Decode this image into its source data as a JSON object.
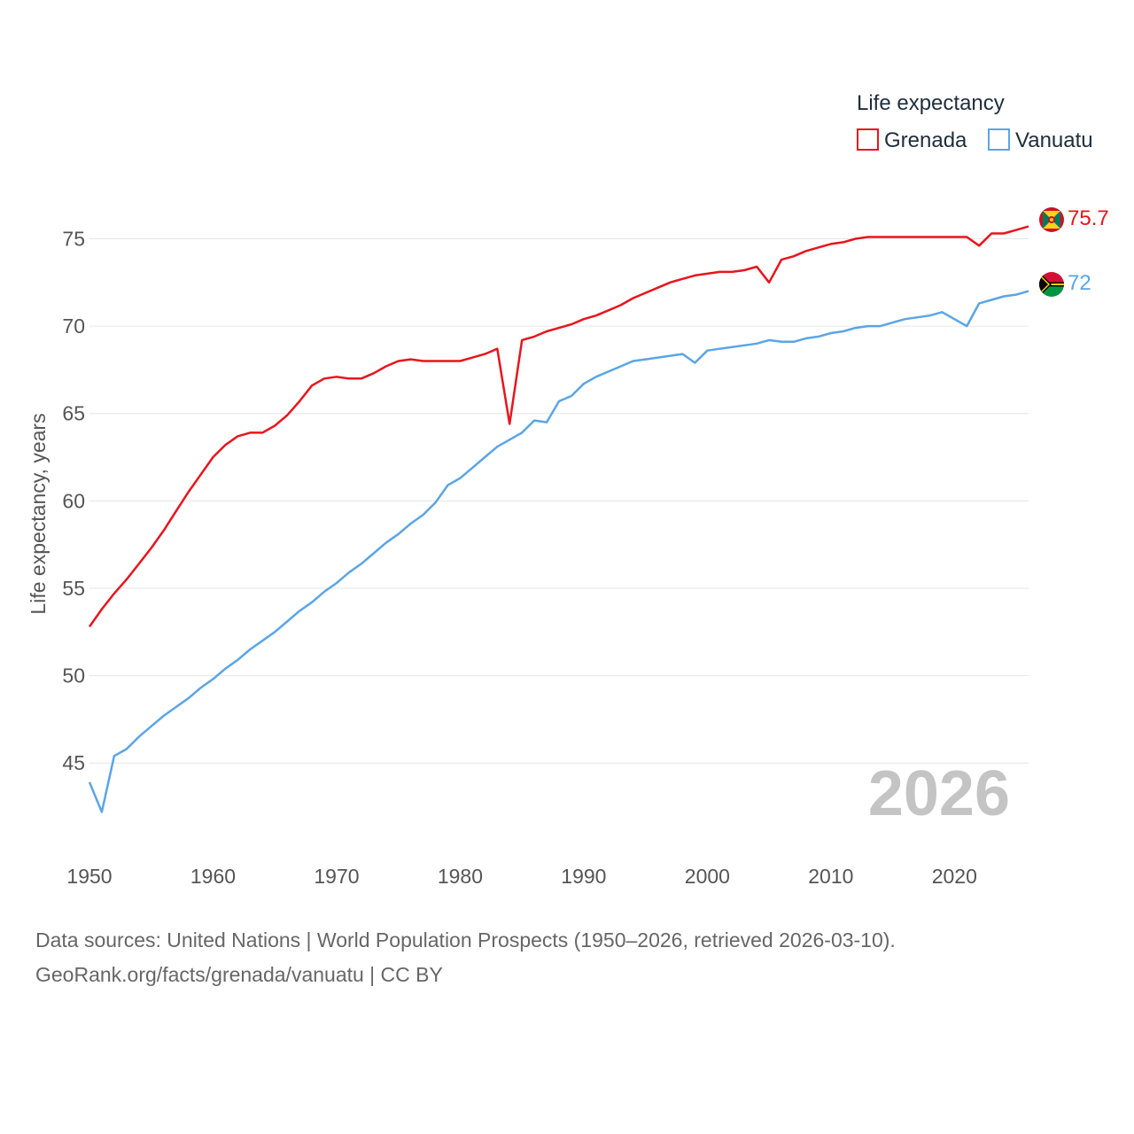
{
  "chart_data": {
    "type": "line",
    "ylabel": "Life expectancy, years",
    "xlim": [
      1950,
      2026
    ],
    "ylim": [
      40.5,
      77
    ],
    "x_ticks": [
      1950,
      1960,
      1970,
      1980,
      1990,
      2000,
      2010,
      2020
    ],
    "y_ticks": [
      45,
      50,
      55,
      60,
      65,
      70,
      75
    ],
    "legend": {
      "title": "Life expectancy",
      "position": "top-right"
    },
    "year_stamp": "2026",
    "series": [
      {
        "name": "Grenada",
        "color": "#e8141c",
        "end_label": "75.7",
        "flag": "grenada-flag",
        "points": [
          [
            1950,
            52.8
          ],
          [
            1951,
            53.8
          ],
          [
            1952,
            54.7
          ],
          [
            1953,
            55.5
          ],
          [
            1954,
            56.4
          ],
          [
            1955,
            57.3
          ],
          [
            1956,
            58.3
          ],
          [
            1957,
            59.4
          ],
          [
            1958,
            60.5
          ],
          [
            1959,
            61.5
          ],
          [
            1960,
            62.5
          ],
          [
            1961,
            63.2
          ],
          [
            1962,
            63.7
          ],
          [
            1963,
            63.9
          ],
          [
            1964,
            63.9
          ],
          [
            1965,
            64.3
          ],
          [
            1966,
            64.9
          ],
          [
            1967,
            65.7
          ],
          [
            1968,
            66.6
          ],
          [
            1969,
            67.0
          ],
          [
            1970,
            67.1
          ],
          [
            1971,
            67.0
          ],
          [
            1972,
            67.0
          ],
          [
            1973,
            67.3
          ],
          [
            1974,
            67.7
          ],
          [
            1975,
            68.0
          ],
          [
            1976,
            68.1
          ],
          [
            1977,
            68.0
          ],
          [
            1978,
            68.0
          ],
          [
            1979,
            68.0
          ],
          [
            1980,
            68.0
          ],
          [
            1981,
            68.2
          ],
          [
            1982,
            68.4
          ],
          [
            1983,
            68.7
          ],
          [
            1984,
            64.4
          ],
          [
            1985,
            69.2
          ],
          [
            1986,
            69.4
          ],
          [
            1987,
            69.7
          ],
          [
            1988,
            69.9
          ],
          [
            1989,
            70.1
          ],
          [
            1990,
            70.4
          ],
          [
            1991,
            70.6
          ],
          [
            1992,
            70.9
          ],
          [
            1993,
            71.2
          ],
          [
            1994,
            71.6
          ],
          [
            1995,
            71.9
          ],
          [
            1996,
            72.2
          ],
          [
            1997,
            72.5
          ],
          [
            1998,
            72.7
          ],
          [
            1999,
            72.9
          ],
          [
            2000,
            73.0
          ],
          [
            2001,
            73.1
          ],
          [
            2002,
            73.1
          ],
          [
            2003,
            73.2
          ],
          [
            2004,
            73.4
          ],
          [
            2005,
            72.5
          ],
          [
            2006,
            73.8
          ],
          [
            2007,
            74.0
          ],
          [
            2008,
            74.3
          ],
          [
            2009,
            74.5
          ],
          [
            2010,
            74.7
          ],
          [
            2011,
            74.8
          ],
          [
            2012,
            75.0
          ],
          [
            2013,
            75.1
          ],
          [
            2014,
            75.1
          ],
          [
            2015,
            75.1
          ],
          [
            2016,
            75.1
          ],
          [
            2017,
            75.1
          ],
          [
            2018,
            75.1
          ],
          [
            2019,
            75.1
          ],
          [
            2020,
            75.1
          ],
          [
            2021,
            75.1
          ],
          [
            2022,
            74.6
          ],
          [
            2023,
            75.3
          ],
          [
            2024,
            75.3
          ],
          [
            2025,
            75.5
          ],
          [
            2026,
            75.7
          ]
        ]
      },
      {
        "name": "Vanuatu",
        "color": "#5aa5e6",
        "end_label": "72",
        "flag": "vanuatu-flag",
        "points": [
          [
            1950,
            43.9
          ],
          [
            1951,
            42.2
          ],
          [
            1952,
            45.4
          ],
          [
            1953,
            45.8
          ],
          [
            1954,
            46.5
          ],
          [
            1955,
            47.1
          ],
          [
            1956,
            47.7
          ],
          [
            1957,
            48.2
          ],
          [
            1958,
            48.7
          ],
          [
            1959,
            49.3
          ],
          [
            1960,
            49.8
          ],
          [
            1961,
            50.4
          ],
          [
            1962,
            50.9
          ],
          [
            1963,
            51.5
          ],
          [
            1964,
            52.0
          ],
          [
            1965,
            52.5
          ],
          [
            1966,
            53.1
          ],
          [
            1967,
            53.7
          ],
          [
            1968,
            54.2
          ],
          [
            1969,
            54.8
          ],
          [
            1970,
            55.3
          ],
          [
            1971,
            55.9
          ],
          [
            1972,
            56.4
          ],
          [
            1973,
            57.0
          ],
          [
            1974,
            57.6
          ],
          [
            1975,
            58.1
          ],
          [
            1976,
            58.7
          ],
          [
            1977,
            59.2
          ],
          [
            1978,
            59.9
          ],
          [
            1979,
            60.9
          ],
          [
            1980,
            61.3
          ],
          [
            1981,
            61.9
          ],
          [
            1982,
            62.5
          ],
          [
            1983,
            63.1
          ],
          [
            1984,
            63.5
          ],
          [
            1985,
            63.9
          ],
          [
            1986,
            64.6
          ],
          [
            1987,
            64.5
          ],
          [
            1988,
            65.7
          ],
          [
            1989,
            66.0
          ],
          [
            1990,
            66.7
          ],
          [
            1991,
            67.1
          ],
          [
            1992,
            67.4
          ],
          [
            1993,
            67.7
          ],
          [
            1994,
            68.0
          ],
          [
            1995,
            68.1
          ],
          [
            1996,
            68.2
          ],
          [
            1997,
            68.3
          ],
          [
            1998,
            68.4
          ],
          [
            1999,
            67.9
          ],
          [
            2000,
            68.6
          ],
          [
            2001,
            68.7
          ],
          [
            2002,
            68.8
          ],
          [
            2003,
            68.9
          ],
          [
            2004,
            69.0
          ],
          [
            2005,
            69.2
          ],
          [
            2006,
            69.1
          ],
          [
            2007,
            69.1
          ],
          [
            2008,
            69.3
          ],
          [
            2009,
            69.4
          ],
          [
            2010,
            69.6
          ],
          [
            2011,
            69.7
          ],
          [
            2012,
            69.9
          ],
          [
            2013,
            70.0
          ],
          [
            2014,
            70.0
          ],
          [
            2015,
            70.2
          ],
          [
            2016,
            70.4
          ],
          [
            2017,
            70.5
          ],
          [
            2018,
            70.6
          ],
          [
            2019,
            70.8
          ],
          [
            2020,
            70.4
          ],
          [
            2021,
            70.0
          ],
          [
            2022,
            71.3
          ],
          [
            2023,
            71.5
          ],
          [
            2024,
            71.7
          ],
          [
            2025,
            71.8
          ],
          [
            2026,
            72.0
          ]
        ]
      }
    ]
  },
  "footer": {
    "sources": "Data sources: United Nations | World Population Prospects (1950–2026, retrieved 2026-03-10).",
    "credit": "GeoRank.org/facts/grenada/vanuatu | CC BY"
  }
}
